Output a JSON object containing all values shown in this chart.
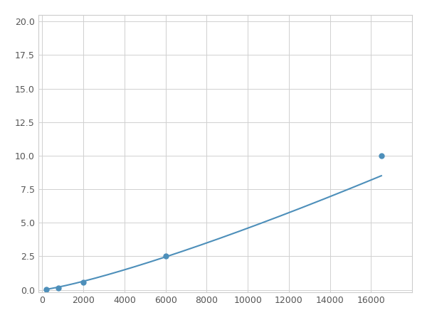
{
  "x": [
    200,
    800,
    2000,
    6000,
    16500
  ],
  "y": [
    0.05,
    0.15,
    0.55,
    2.5,
    10.0
  ],
  "line_color": "#4d8fba",
  "marker_color": "#4d8fba",
  "marker_size": 5,
  "line_width": 1.5,
  "xlim": [
    -200,
    18000
  ],
  "ylim": [
    -0.2,
    20.5
  ],
  "xticks": [
    0,
    2000,
    4000,
    6000,
    8000,
    10000,
    12000,
    14000,
    16000
  ],
  "yticks": [
    0.0,
    2.5,
    5.0,
    7.5,
    10.0,
    12.5,
    15.0,
    17.5,
    20.0
  ],
  "grid_color": "#d0d0d0",
  "bg_color": "#ffffff",
  "fig_bg_color": "#ffffff"
}
